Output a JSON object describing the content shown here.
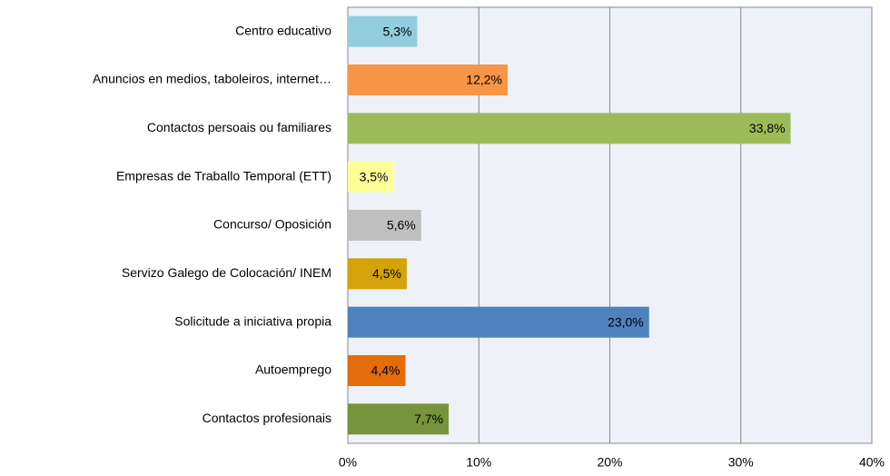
{
  "chart_data": {
    "type": "bar",
    "orientation": "horizontal",
    "categories": [
      "Centro educativo",
      "Anuncios en medios, taboleiros, internet…",
      "Contactos persoais ou familiares",
      "Empresas de Traballo Temporal (ETT)",
      "Concurso/ Oposición",
      "Servizo Galego de Colocación/ INEM",
      "Solicitude a iniciativa propia",
      "Autoemprego",
      "Contactos profesionais"
    ],
    "values": [
      5.3,
      12.2,
      33.8,
      3.5,
      5.6,
      4.5,
      23.0,
      4.4,
      7.7
    ],
    "value_labels": [
      "5,3%",
      "12,2%",
      "33,8%",
      "3,5%",
      "5,6%",
      "4,5%",
      "23,0%",
      "4,4%",
      "7,7%"
    ],
    "colors": [
      "#93cddd",
      "#f79646",
      "#9bbb59",
      "#ffff99",
      "#bfbfbf",
      "#d4a20a",
      "#4f81bd",
      "#e46c0a",
      "#77933c"
    ],
    "xlim": [
      0,
      40
    ],
    "xticks": [
      {
        "value": 0,
        "label": "0%"
      },
      {
        "value": 10,
        "label": "10%"
      },
      {
        "value": 20,
        "label": "20%"
      },
      {
        "value": 30,
        "label": "30%"
      },
      {
        "value": 40,
        "label": "40%"
      }
    ],
    "grid": true
  }
}
